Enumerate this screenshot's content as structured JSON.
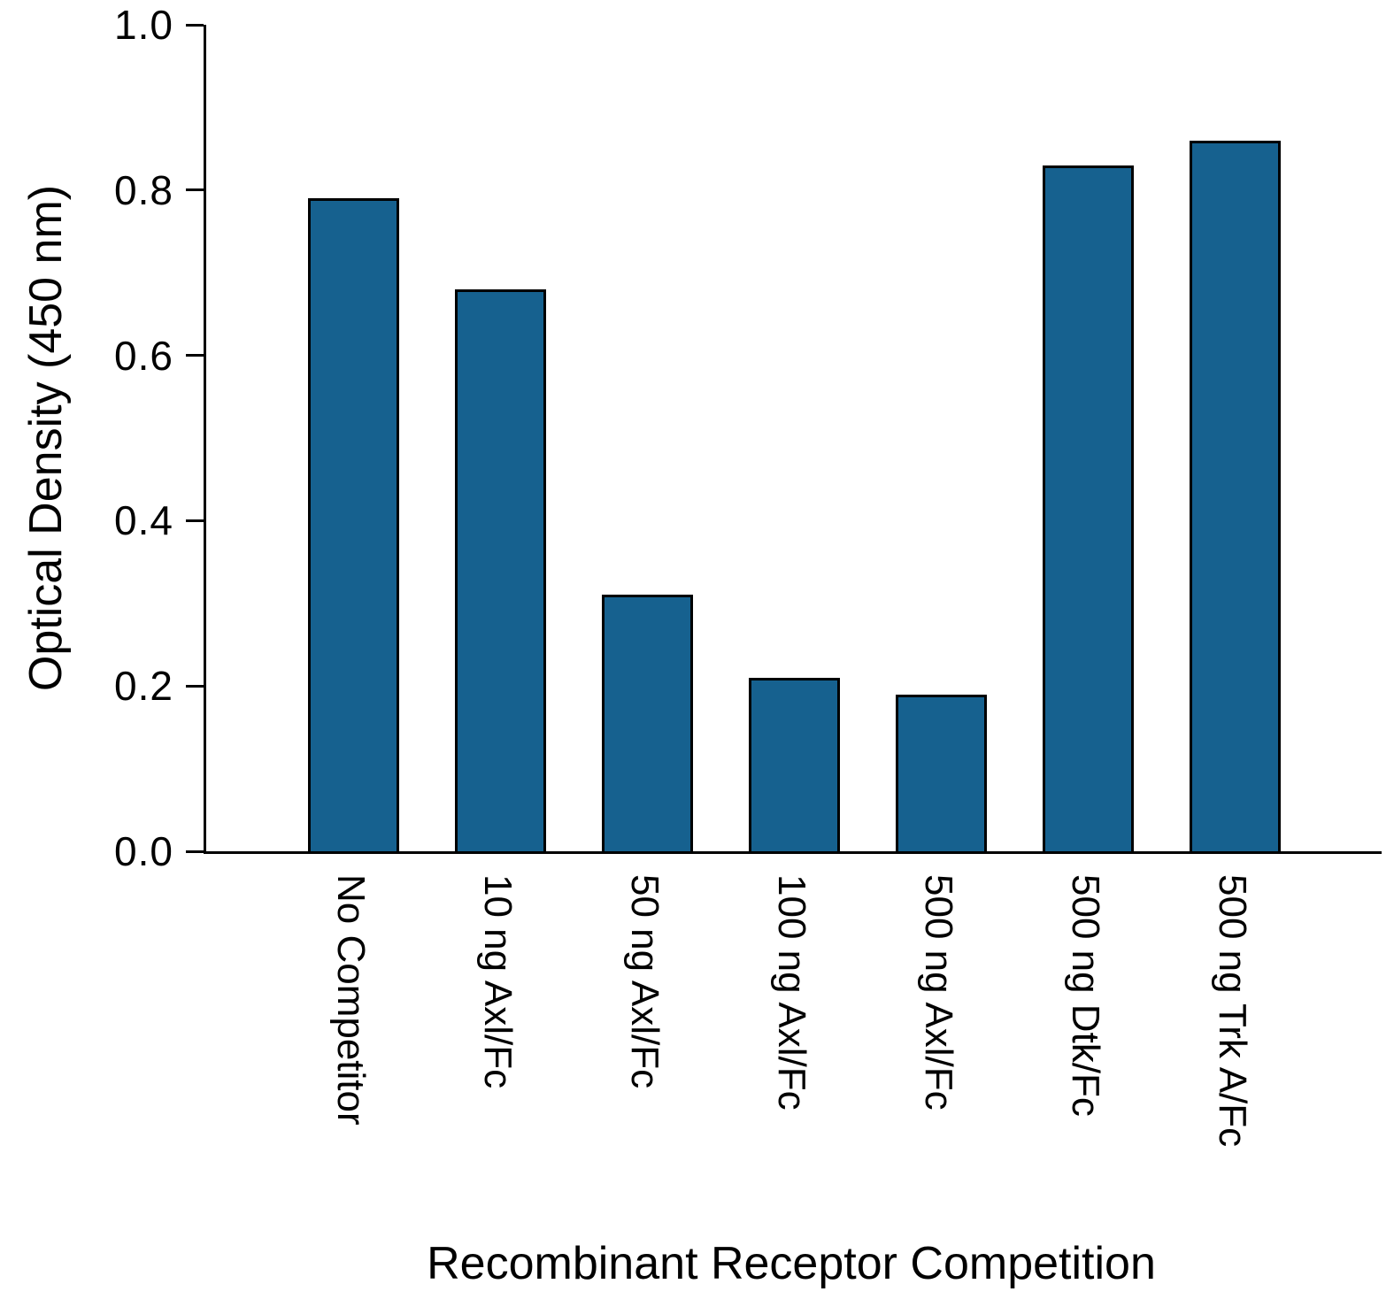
{
  "chart_data": {
    "type": "bar",
    "categories": [
      "No Competitor",
      "10 ng Axl/Fc",
      "50 ng Axl/Fc",
      "100 ng Axl/Fc",
      "500 ng Axl/Fc",
      "500 ng Dtk/Fc",
      "500 ng Trk A/Fc"
    ],
    "values": [
      0.79,
      0.68,
      0.31,
      0.21,
      0.19,
      0.83,
      0.86
    ],
    "title": "",
    "xlabel": "Recombinant Receptor Competition",
    "ylabel": "Optical Density (450 nm)",
    "ylim": [
      0.0,
      1.0
    ],
    "yticks": [
      0.0,
      0.2,
      0.4,
      0.6,
      0.8,
      1.0
    ],
    "ytick_labels": [
      "0.0",
      "0.2",
      "0.4",
      "0.6",
      "0.8",
      "1.0"
    ],
    "bar_color": "#16618f",
    "bar_border_color": "#000000",
    "axis_color": "#000000",
    "grid": false,
    "legend": null
  }
}
